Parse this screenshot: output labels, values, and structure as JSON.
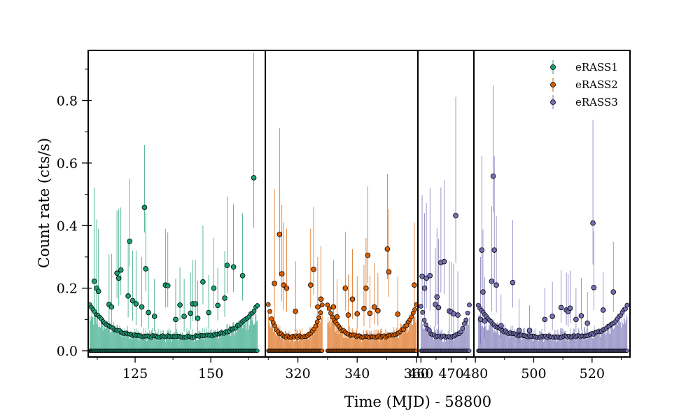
{
  "chart_data": {
    "type": "scatter",
    "title": "",
    "xlabel": "Time (MJD) - 58800",
    "ylabel": "Count rate (cts/s)",
    "ylim": [
      -0.02,
      0.96
    ],
    "yticks": [
      0.0,
      0.2,
      0.4,
      0.6,
      0.8
    ],
    "ytick_labels": [
      "0.0",
      "0.2",
      "0.4",
      "0.6",
      "0.8"
    ],
    "grid": false,
    "legend_position": "top-right",
    "panels": [
      {
        "xlim": [
          109.5,
          168
        ],
        "xticks": [
          125,
          150
        ],
        "xtick_labels": [
          "125",
          "150"
        ]
      },
      {
        "xlim": [
          309,
          360.5
        ],
        "xticks": [
          320,
          340,
          360
        ],
        "xtick_labels": [
          "320",
          "340",
          "360"
        ]
      },
      {
        "xlim": [
          459,
          477.5
        ],
        "xticks": [
          460,
          470
        ],
        "xtick_labels": [
          "460",
          "470"
        ]
      },
      {
        "xlim": [
          479.5,
          533
        ],
        "xticks": [
          480,
          500,
          520
        ],
        "xtick_labels": [
          "480",
          "500",
          "520"
        ]
      }
    ],
    "series": [
      {
        "name": "eRASS1",
        "color": "#1b9e77",
        "segments": [
          {
            "x_start": 110,
            "x_end": 165.4,
            "points": [
              [
                111.5,
                0.222,
                0.3
              ],
              [
                112.3,
                0.2,
                0.22
              ],
              [
                112.9,
                0.19,
                0.2
              ],
              [
                116.4,
                0.148,
                0.16
              ],
              [
                117.2,
                0.14,
                0.17
              ],
              [
                119,
                0.248,
                0.2
              ],
              [
                119.6,
                0.232,
                0.22
              ],
              [
                120.3,
                0.258,
                0.2
              ],
              [
                122.7,
                0.175,
                0.17
              ],
              [
                123.2,
                0.35,
                0.2
              ],
              [
                124.2,
                0.16,
                0.16
              ],
              [
                125.3,
                0.15,
                0.17
              ],
              [
                127.2,
                0.14,
                0.16
              ],
              [
                128.1,
                0.458,
                0.2
              ],
              [
                128.5,
                0.262,
                0.18
              ],
              [
                129.4,
                0.122,
                0.14
              ],
              [
                131.4,
                0.11,
                0.12
              ],
              [
                135,
                0.21,
                0.18
              ],
              [
                135.8,
                0.208,
                0.17
              ],
              [
                138.4,
                0.1,
                0.13
              ],
              [
                139.8,
                0.146,
                0.12
              ],
              [
                141.2,
                0.11,
                0.12
              ],
              [
                143.3,
                0.12,
                0.13
              ],
              [
                144,
                0.15,
                0.14
              ],
              [
                144.9,
                0.15,
                0.14
              ],
              [
                145.7,
                0.104,
                0.12
              ],
              [
                147.4,
                0.22,
                0.18
              ],
              [
                149.3,
                0.122,
                0.12
              ],
              [
                151,
                0.2,
                0.16
              ],
              [
                152.3,
                0.145,
                0.12
              ],
              [
                154.6,
                0.168,
                0.15
              ],
              [
                155.4,
                0.273,
                0.22
              ],
              [
                157.5,
                0.268,
                0.2
              ],
              [
                160.5,
                0.24,
                0.2
              ],
              [
                164.2,
                0.553,
                0.4
              ]
            ]
          }
        ]
      },
      {
        "name": "eRASS2",
        "color": "#d95f02",
        "segments": [
          {
            "x_start": 310,
            "x_end": 328.2,
            "points": [
              [
                312.1,
                0.215,
                0.3
              ],
              [
                313.8,
                0.372,
                0.34
              ],
              [
                314.6,
                0.246,
                0.22
              ],
              [
                315.2,
                0.21,
                0.2
              ],
              [
                316.2,
                0.2,
                0.19
              ],
              [
                319.2,
                0.126,
                0.16
              ],
              [
                324.3,
                0.21,
                0.18
              ],
              [
                325.3,
                0.26,
                0.2
              ],
              [
                326.7,
                0.14,
                0.16
              ],
              [
                327.8,
                0.165,
                0.17
              ]
            ]
          },
          {
            "x_start": 330,
            "x_end": 360,
            "points": [
              [
                332,
                0.14,
                0.15
              ],
              [
                333.2,
                0.108,
                0.12
              ],
              [
                336,
                0.2,
                0.18
              ],
              [
                337,
                0.114,
                0.13
              ],
              [
                338.4,
                0.165,
                0.16
              ],
              [
                340,
                0.118,
                0.12
              ],
              [
                342.3,
                0.135,
                0.14
              ],
              [
                343,
                0.2,
                0.16
              ],
              [
                343.6,
                0.305,
                0.22
              ],
              [
                344.3,
                0.12,
                0.12
              ],
              [
                345.8,
                0.14,
                0.14
              ],
              [
                347,
                0.128,
                0.12
              ],
              [
                350.2,
                0.325,
                0.24
              ],
              [
                350.7,
                0.252,
                0.2
              ],
              [
                353.7,
                0.117,
                0.12
              ],
              [
                359.3,
                0.21,
                0.2
              ]
            ]
          }
        ]
      },
      {
        "name": "eRASS3",
        "color": "#7570b3",
        "segments": [
          {
            "x_start": 460,
            "x_end": 476,
            "points": [
              [
                460.4,
                0.238,
                0.26
              ],
              [
                461.2,
                0.2,
                0.24
              ],
              [
                461.8,
                0.232,
                0.24
              ],
              [
                463,
                0.24,
                0.28
              ],
              [
                464.8,
                0.148,
                0.18
              ],
              [
                465.3,
                0.172,
                0.22
              ],
              [
                465.8,
                0.138,
                0.22
              ],
              [
                466.6,
                0.282,
                0.24
              ],
              [
                467.7,
                0.285,
                0.26
              ],
              [
                469.4,
                0.127,
                0.16
              ],
              [
                470,
                0.124,
                0.16
              ],
              [
                470.8,
                0.118,
                0.16
              ],
              [
                471.5,
                0.432,
                0.38
              ],
              [
                472.2,
                0.114,
                0.14
              ]
            ]
          },
          {
            "x_start": 481,
            "x_end": 532,
            "points": [
              [
                481.8,
                0.1,
                0.2
              ],
              [
                482.2,
                0.322,
                0.3
              ],
              [
                482.6,
                0.188,
                0.2
              ],
              [
                483.2,
                0.095,
                0.14
              ],
              [
                485.6,
                0.222,
                0.24
              ],
              [
                486.1,
                0.558,
                0.29
              ],
              [
                486.5,
                0.322,
                0.3
              ],
              [
                487.2,
                0.21,
                0.22
              ],
              [
                488.8,
                0.08,
                0.1
              ],
              [
                492.8,
                0.218,
                0.2
              ],
              [
                495,
                0.065,
                0.1
              ],
              [
                498.6,
                0.065,
                0.08
              ],
              [
                503.8,
                0.1,
                0.1
              ],
              [
                506.4,
                0.11,
                0.11
              ],
              [
                509.4,
                0.138,
                0.12
              ],
              [
                511.2,
                0.13,
                0.12
              ],
              [
                511.8,
                0.125,
                0.12
              ],
              [
                512.5,
                0.136,
                0.12
              ],
              [
                514.5,
                0.1,
                0.1
              ],
              [
                516.3,
                0.112,
                0.12
              ],
              [
                518.4,
                0.088,
                0.1
              ],
              [
                520.3,
                0.408,
                0.33
              ],
              [
                520.6,
                0.202,
                0.18
              ],
              [
                523.8,
                0.13,
                0.12
              ],
              [
                527.3,
                0.188,
                0.16
              ]
            ]
          }
        ]
      }
    ]
  },
  "legend": {
    "items": [
      {
        "label": "eRASS1",
        "color": "#1b9e77"
      },
      {
        "label": "eRASS2",
        "color": "#d95f02"
      },
      {
        "label": "eRASS3",
        "color": "#7570b3"
      }
    ]
  }
}
